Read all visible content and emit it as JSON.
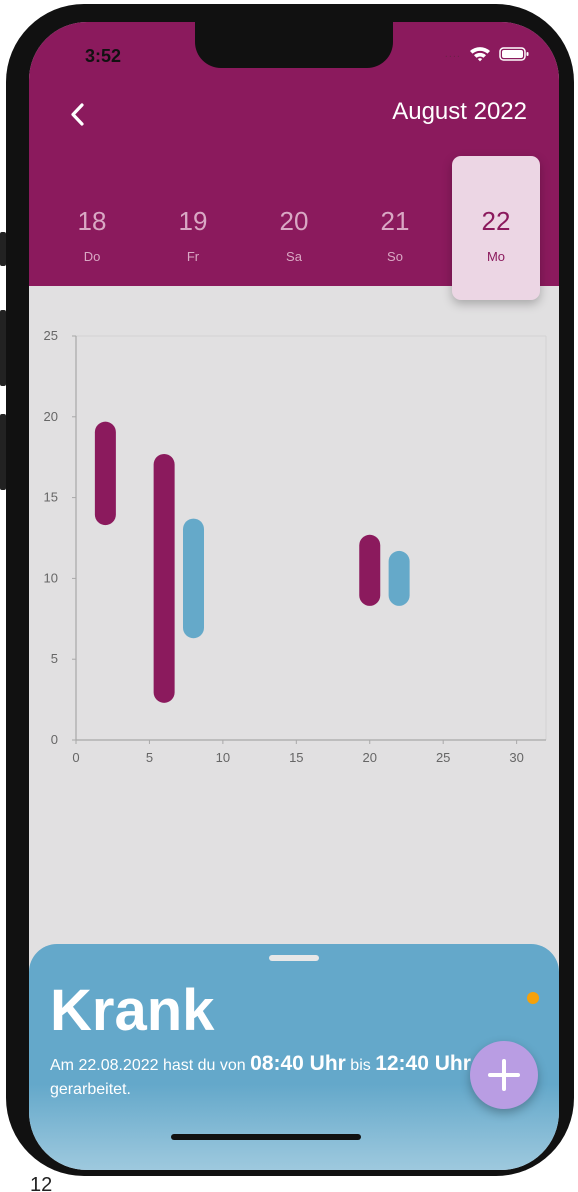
{
  "status_bar": {
    "time": "3:52",
    "signal_dots": "....",
    "wifi_icon": "wifi-icon",
    "battery_icon": "battery-icon"
  },
  "header": {
    "back_icon": "chevron-left-icon",
    "month": "August 2022",
    "days": [
      {
        "num": "18",
        "name": "Do",
        "active": false
      },
      {
        "num": "19",
        "name": "Fr",
        "active": false
      },
      {
        "num": "20",
        "name": "Sa",
        "active": false
      },
      {
        "num": "21",
        "name": "So",
        "active": false
      },
      {
        "num": "22",
        "name": "Mo",
        "active": true
      }
    ]
  },
  "chart_data": {
    "type": "bar",
    "title": "",
    "xlabel": "",
    "ylabel": "",
    "xlim": [
      0,
      32
    ],
    "ylim": [
      0,
      25
    ],
    "xticks": [
      "0",
      "5",
      "10",
      "15",
      "20",
      "25",
      "30"
    ],
    "yticks": [
      "0",
      "5",
      "10",
      "15",
      "20",
      "25"
    ],
    "grid": false,
    "series": [
      {
        "color": "#8b1a5d",
        "bars": [
          {
            "x": 2,
            "from": 13.3,
            "to": 19.7
          },
          {
            "x": 6,
            "from": 2.3,
            "to": 17.7
          },
          {
            "x": 20,
            "from": 8.3,
            "to": 12.7
          }
        ]
      },
      {
        "color": "#65a9c9",
        "bars": [
          {
            "x": 8,
            "from": 6.3,
            "to": 13.7
          },
          {
            "x": 22,
            "from": 8.3,
            "to": 11.7
          }
        ]
      }
    ]
  },
  "sheet": {
    "title": "Krank",
    "desc_prefix": "Am 22.08.2022 hast du von ",
    "start_time": "08:40 Uhr",
    "desc_mid": " bis ",
    "end_time": "12:40 Uhr",
    "desc_suffix": " gerarbeitet.",
    "fab_icon": "plus-icon"
  },
  "corner_text": "12"
}
